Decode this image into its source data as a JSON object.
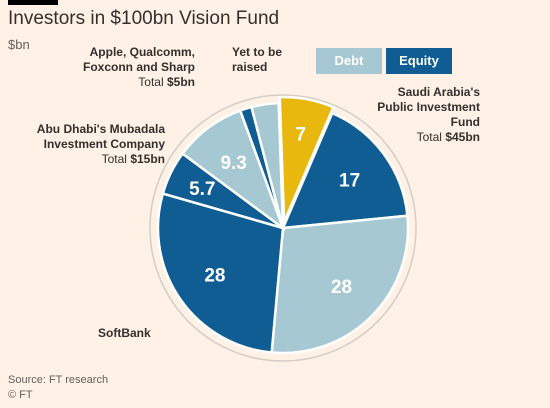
{
  "title": "Investors in $100bn Vision Fund",
  "subtitle": "$bn",
  "legend": {
    "debt": "Debt",
    "equity": "Equity"
  },
  "groups": {
    "apple": {
      "name_line1": "Apple, Qualcomm,",
      "name_line2": "Foxconn and Sharp",
      "total_prefix": "Total",
      "total_value": "$5bn"
    },
    "yet": {
      "name_line1": "Yet to be",
      "name_line2": "raised"
    },
    "saudi": {
      "name_line1": "Saudi Arabia's",
      "name_line2": "Public Investment",
      "name_line3": "Fund",
      "total_prefix": "Total",
      "total_value": "$45bn"
    },
    "abudhabi": {
      "name_line1": "Abu Dhabi's Mubadala",
      "name_line2": "Investment Company",
      "total_prefix": "Total",
      "total_value": "$15bn"
    },
    "softbank": {
      "name_line1": "SoftBank"
    }
  },
  "footer": {
    "source": "Source: FT research",
    "copyright": "© FT"
  },
  "colors": {
    "debt": "#a6c8d2",
    "equity": "#0f5d92",
    "yet": "#e8b80f",
    "background": "#fff1e5",
    "ring": "#d4cdc6"
  },
  "chart_data": {
    "type": "pie",
    "title": "Investors in $100bn Vision Fund",
    "unit": "$bn",
    "slices": [
      {
        "group": "Yet to be raised",
        "kind": "yet",
        "value": 7,
        "label": "7"
      },
      {
        "group": "Saudi Arabia's Public Investment Fund",
        "kind": "equity",
        "value": 17,
        "label": "17"
      },
      {
        "group": "Saudi Arabia's Public Investment Fund",
        "kind": "debt",
        "value": 28,
        "label": "28"
      },
      {
        "group": "SoftBank",
        "kind": "equity",
        "value": 28,
        "label": "28"
      },
      {
        "group": "Abu Dhabi's Mubadala Investment Company",
        "kind": "equity",
        "value": 5.7,
        "label": "5.7"
      },
      {
        "group": "Abu Dhabi's Mubadala Investment Company",
        "kind": "debt",
        "value": 9.3,
        "label": "9.3"
      },
      {
        "group": "Apple, Qualcomm, Foxconn and Sharp",
        "kind": "equity",
        "value": 1.5,
        "label": ""
      },
      {
        "group": "Apple, Qualcomm, Foxconn and Sharp",
        "kind": "debt",
        "value": 3.5,
        "label": ""
      }
    ],
    "legend": [
      "Debt",
      "Equity"
    ],
    "legend_position": "top-right"
  }
}
